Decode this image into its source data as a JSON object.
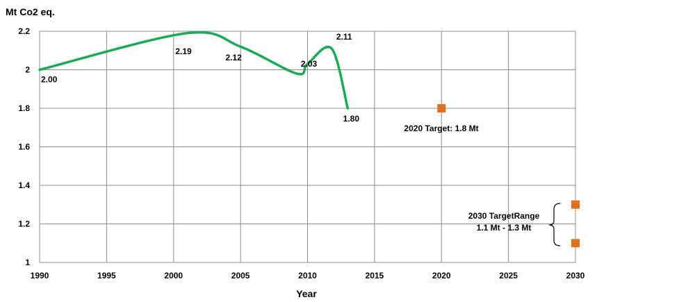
{
  "chart_data": {
    "type": "line",
    "ylabel": "Mt Co2 eq.",
    "xlabel": "Year",
    "xlim": [
      1990,
      2030
    ],
    "ylim": [
      1,
      2.2
    ],
    "x_ticks": [
      "1990",
      "1995",
      "2000",
      "2005",
      "2010",
      "2015",
      "2020",
      "2025",
      "2030"
    ],
    "y_ticks": [
      "1",
      "1.2",
      "1.4",
      "1.6",
      "1.8",
      "2",
      "2.2"
    ],
    "grid": true,
    "series": [
      {
        "color": "#1aaa55",
        "points": [
          {
            "x": 1990,
            "y": 2.0,
            "label": "2.00"
          },
          {
            "x": 2001,
            "y": 2.19,
            "label": "2.19"
          },
          {
            "x": 2005,
            "y": 2.12,
            "label": "2.12"
          },
          {
            "x": 2009.2,
            "y": 1.98
          },
          {
            "x": 2010,
            "y": 2.03,
            "label": "2.03"
          },
          {
            "x": 2011.8,
            "y": 2.11,
            "label": "2.11"
          },
          {
            "x": 2013,
            "y": 1.8,
            "label": "1.80"
          }
        ]
      }
    ],
    "targets": [
      {
        "x": 2020,
        "y": 1.8,
        "color": "#e07020"
      },
      {
        "x": 2030,
        "y": 1.3,
        "color": "#e07020"
      },
      {
        "x": 2030,
        "y": 1.1,
        "color": "#e07020"
      }
    ],
    "annotations": {
      "target_2020": "2020 Target: 1.8 Mt",
      "target_2030_line1": "2030 TargetRange",
      "target_2030_line2": "1.1 Mt - 1.3 Mt"
    }
  }
}
